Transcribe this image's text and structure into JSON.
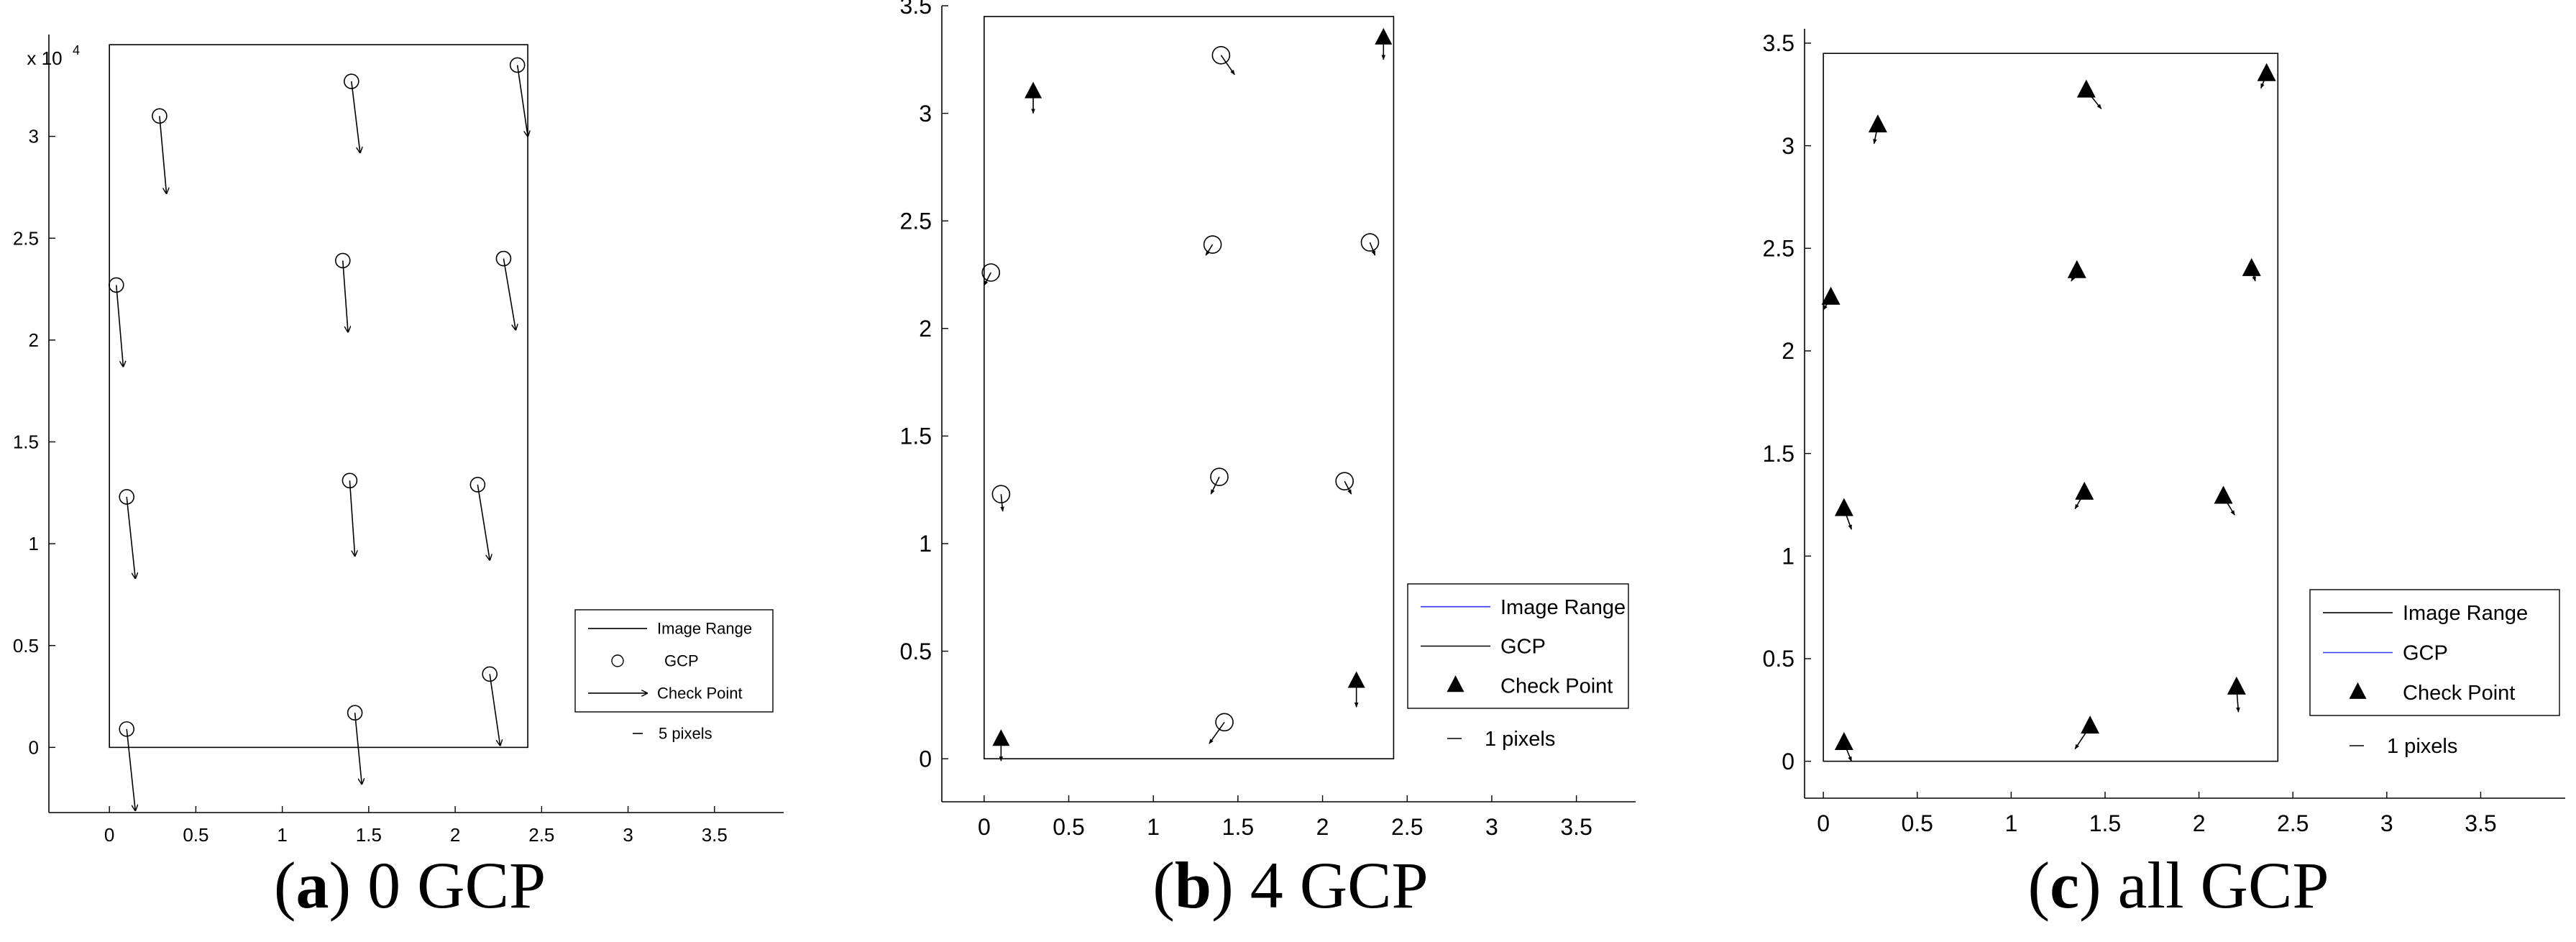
{
  "legend": {
    "image_range": "Image Range",
    "gcp": "GCP",
    "check_point": "Check Point"
  },
  "colors": {
    "axis": "#000000",
    "blue_line": "#3333ff",
    "frame": "#000000"
  },
  "chart_data": [
    {
      "type": "scatter",
      "panel": "a",
      "caption_letter": "a",
      "caption_text": "0 GCP",
      "y_multiplier": "x 10",
      "y_exponent": "4",
      "xlim": [
        -0.35,
        3.9
      ],
      "ylim": [
        -0.32,
        3.5
      ],
      "xticks": [
        0,
        0.5,
        1,
        1.5,
        2,
        2.5,
        3,
        3.5
      ],
      "xtick_labels": [
        "0",
        "0.5",
        "1",
        "1.5",
        "2",
        "2.5",
        "3",
        "3.5"
      ],
      "yticks": [
        0,
        0.5,
        1,
        1.5,
        2,
        2.5,
        3
      ],
      "ytick_labels": [
        "0",
        "0.5",
        "1",
        "1.5",
        "2",
        "2.5",
        "3"
      ],
      "image_range": {
        "x": [
          0,
          2.42
        ],
        "y": [
          0,
          3.45
        ]
      },
      "legend_scale_label": "5 pixels",
      "legend_gcp_color": "#000000",
      "legend_range_color": "#000000",
      "gcp_points": [],
      "check_points": [
        {
          "x": 0.29,
          "y": 3.1,
          "dx": 0.04,
          "dy": -0.38
        },
        {
          "x": 1.4,
          "y": 3.27,
          "dx": 0.05,
          "dy": -0.35
        },
        {
          "x": 2.36,
          "y": 3.35,
          "dx": 0.06,
          "dy": -0.35
        },
        {
          "x": 0.04,
          "y": 2.27,
          "dx": 0.04,
          "dy": -0.4
        },
        {
          "x": 1.35,
          "y": 2.39,
          "dx": 0.03,
          "dy": -0.35
        },
        {
          "x": 2.28,
          "y": 2.4,
          "dx": 0.07,
          "dy": -0.35
        },
        {
          "x": 0.1,
          "y": 1.23,
          "dx": 0.05,
          "dy": -0.4
        },
        {
          "x": 1.39,
          "y": 1.31,
          "dx": 0.03,
          "dy": -0.37
        },
        {
          "x": 2.13,
          "y": 1.29,
          "dx": 0.07,
          "dy": -0.37
        },
        {
          "x": 0.1,
          "y": 0.09,
          "dx": 0.05,
          "dy": -0.4
        },
        {
          "x": 1.42,
          "y": 0.17,
          "dx": 0.04,
          "dy": -0.35
        },
        {
          "x": 2.2,
          "y": 0.36,
          "dx": 0.06,
          "dy": -0.35
        }
      ]
    },
    {
      "type": "scatter",
      "panel": "b",
      "caption_letter": "b",
      "caption_text": "4 GCP",
      "xlim": [
        -0.25,
        3.85
      ],
      "ylim": [
        -0.2,
        3.5
      ],
      "xticks": [
        0,
        0.5,
        1,
        1.5,
        2,
        2.5,
        3,
        3.5
      ],
      "xtick_labels": [
        "0",
        "0.5",
        "1",
        "1.5",
        "2",
        "2.5",
        "3",
        "3.5"
      ],
      "yticks": [
        0,
        0.5,
        1,
        1.5,
        2,
        2.5,
        3,
        3.5
      ],
      "ytick_labels": [
        "0",
        "0.5",
        "1",
        "1.5",
        "2",
        "2.5",
        "3",
        "3.5"
      ],
      "image_range": {
        "x": [
          0,
          2.42
        ],
        "y": [
          0,
          3.45
        ]
      },
      "legend_scale_label": "1 pixels",
      "legend_gcp_color": "#000000",
      "legend_range_color": "#3333ff",
      "gcp_points": [
        {
          "x": 0.1,
          "y": 0.09,
          "dx": 0.0,
          "dy": -0.1
        },
        {
          "x": 0.29,
          "y": 3.1,
          "dx": 0.0,
          "dy": -0.1
        },
        {
          "x": 2.36,
          "y": 3.35,
          "dx": 0.0,
          "dy": -0.1
        },
        {
          "x": 2.2,
          "y": 0.36,
          "dx": 0.0,
          "dy": -0.12
        }
      ],
      "check_points": [
        {
          "x": 1.4,
          "y": 3.27,
          "dx": 0.08,
          "dy": -0.09
        },
        {
          "x": 0.04,
          "y": 2.26,
          "dx": -0.04,
          "dy": -0.06
        },
        {
          "x": 1.35,
          "y": 2.39,
          "dx": -0.04,
          "dy": -0.05
        },
        {
          "x": 2.28,
          "y": 2.4,
          "dx": 0.03,
          "dy": -0.06
        },
        {
          "x": 0.1,
          "y": 1.23,
          "dx": 0.01,
          "dy": -0.08
        },
        {
          "x": 1.39,
          "y": 1.31,
          "dx": -0.05,
          "dy": -0.08
        },
        {
          "x": 2.13,
          "y": 1.29,
          "dx": 0.04,
          "dy": -0.06
        },
        {
          "x": 1.42,
          "y": 0.17,
          "dx": -0.09,
          "dy": -0.1
        }
      ]
    },
    {
      "type": "scatter",
      "panel": "c",
      "caption_letter": "c",
      "caption_text": "all GCP",
      "xlim": [
        -0.1,
        3.95
      ],
      "ylim": [
        -0.18,
        3.57
      ],
      "xticks": [
        0,
        0.5,
        1,
        1.5,
        2,
        2.5,
        3,
        3.5
      ],
      "xtick_labels": [
        "0",
        "0.5",
        "1",
        "1.5",
        "2",
        "2.5",
        "3",
        "3.5"
      ],
      "yticks": [
        0,
        0.5,
        1,
        1.5,
        2,
        2.5,
        3,
        3.5
      ],
      "ytick_labels": [
        "0",
        "0.5",
        "1",
        "1.5",
        "2",
        "2.5",
        "3",
        "3.5"
      ],
      "image_range": {
        "x": [
          0,
          2.42
        ],
        "y": [
          0,
          3.45
        ]
      },
      "legend_scale_label": "1 pixels",
      "legend_gcp_color": "#3333ff",
      "legend_range_color": "#000000",
      "gcp_points": [
        {
          "x": 0.29,
          "y": 3.1,
          "dx": -0.02,
          "dy": -0.09
        },
        {
          "x": 1.4,
          "y": 3.27,
          "dx": 0.08,
          "dy": -0.09
        },
        {
          "x": 2.36,
          "y": 3.35,
          "dx": -0.03,
          "dy": -0.07
        },
        {
          "x": 0.04,
          "y": 2.26,
          "dx": -0.04,
          "dy": -0.06
        },
        {
          "x": 1.35,
          "y": 2.39,
          "dx": -0.03,
          "dy": -0.05
        },
        {
          "x": 2.28,
          "y": 2.4,
          "dx": 0.02,
          "dy": -0.06
        },
        {
          "x": 0.11,
          "y": 1.23,
          "dx": 0.04,
          "dy": -0.1
        },
        {
          "x": 1.39,
          "y": 1.31,
          "dx": -0.05,
          "dy": -0.08
        },
        {
          "x": 2.13,
          "y": 1.29,
          "dx": 0.06,
          "dy": -0.09
        },
        {
          "x": 0.11,
          "y": 0.09,
          "dx": 0.04,
          "dy": -0.09
        },
        {
          "x": 1.42,
          "y": 0.17,
          "dx": -0.08,
          "dy": -0.11
        },
        {
          "x": 2.2,
          "y": 0.36,
          "dx": 0.01,
          "dy": -0.12
        }
      ],
      "check_points": []
    }
  ]
}
